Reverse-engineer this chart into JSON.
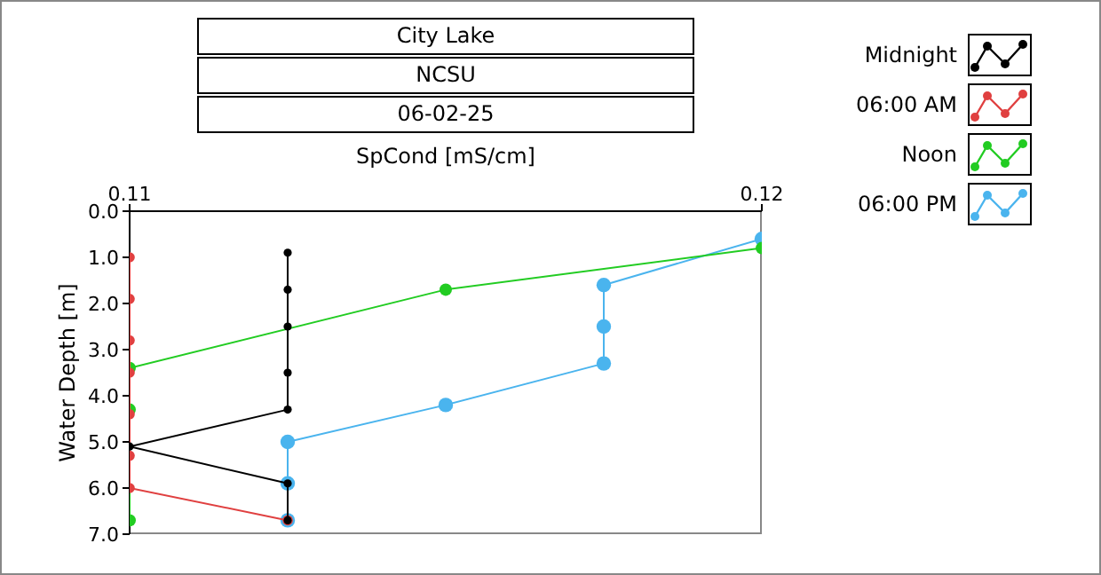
{
  "chart_data": {
    "type": "line",
    "title": "City Lake",
    "subtitle": "NCSU",
    "annotations": [
      "06-02-25"
    ],
    "xlabel": "SpCond [mS/cm]",
    "ylabel": "Water Depth [m]",
    "xlim": [
      0.11,
      0.12
    ],
    "xticks": [
      0.11,
      0.12
    ],
    "ylim": [
      7.0,
      0.0
    ],
    "yticks": [
      {
        "value": 0,
        "label": "0.0"
      },
      {
        "value": 1,
        "label": "1.0"
      },
      {
        "value": 2,
        "label": "2.0"
      },
      {
        "value": 3,
        "label": "3.0"
      },
      {
        "value": 4,
        "label": "4.0"
      },
      {
        "value": 5,
        "label": "5.0"
      },
      {
        "value": 6,
        "label": "6.0"
      },
      {
        "value": 7,
        "label": "7.0"
      }
    ],
    "grid": false,
    "legend": "top right",
    "marker": "circle",
    "line_style": "solid",
    "series": [
      {
        "name": "Midnight",
        "color": "#000000",
        "x": [
          0.1125,
          0.1125,
          0.1125,
          0.1125,
          0.1125,
          0.11,
          0.1125,
          0.1125
        ],
        "values": [
          0.9,
          1.7,
          2.5,
          3.5,
          4.3,
          5.1,
          5.9,
          6.7
        ]
      },
      {
        "name": "06:00 AM",
        "color": "#e04040",
        "x": [
          0.11,
          0.11,
          0.11,
          0.11,
          0.11,
          0.11,
          0.11,
          0.1125
        ],
        "values": [
          1.0,
          1.9,
          2.8,
          3.5,
          4.4,
          5.3,
          6.0,
          6.7
        ]
      },
      {
        "name": "Noon",
        "color": "#22cc22",
        "x": [
          0.11,
          0.11,
          0.11,
          0.115,
          0.12
        ],
        "values": [
          6.7,
          4.3,
          3.4,
          1.7,
          0.8
        ]
      },
      {
        "name": "06:00 PM",
        "color": "#4ab4ee",
        "x": [
          0.12,
          0.1175,
          0.1175,
          0.1175,
          0.115,
          0.1125,
          0.1125,
          0.1125
        ],
        "values": [
          0.6,
          1.6,
          2.5,
          3.3,
          4.2,
          5.0,
          5.9,
          6.7
        ]
      }
    ]
  }
}
